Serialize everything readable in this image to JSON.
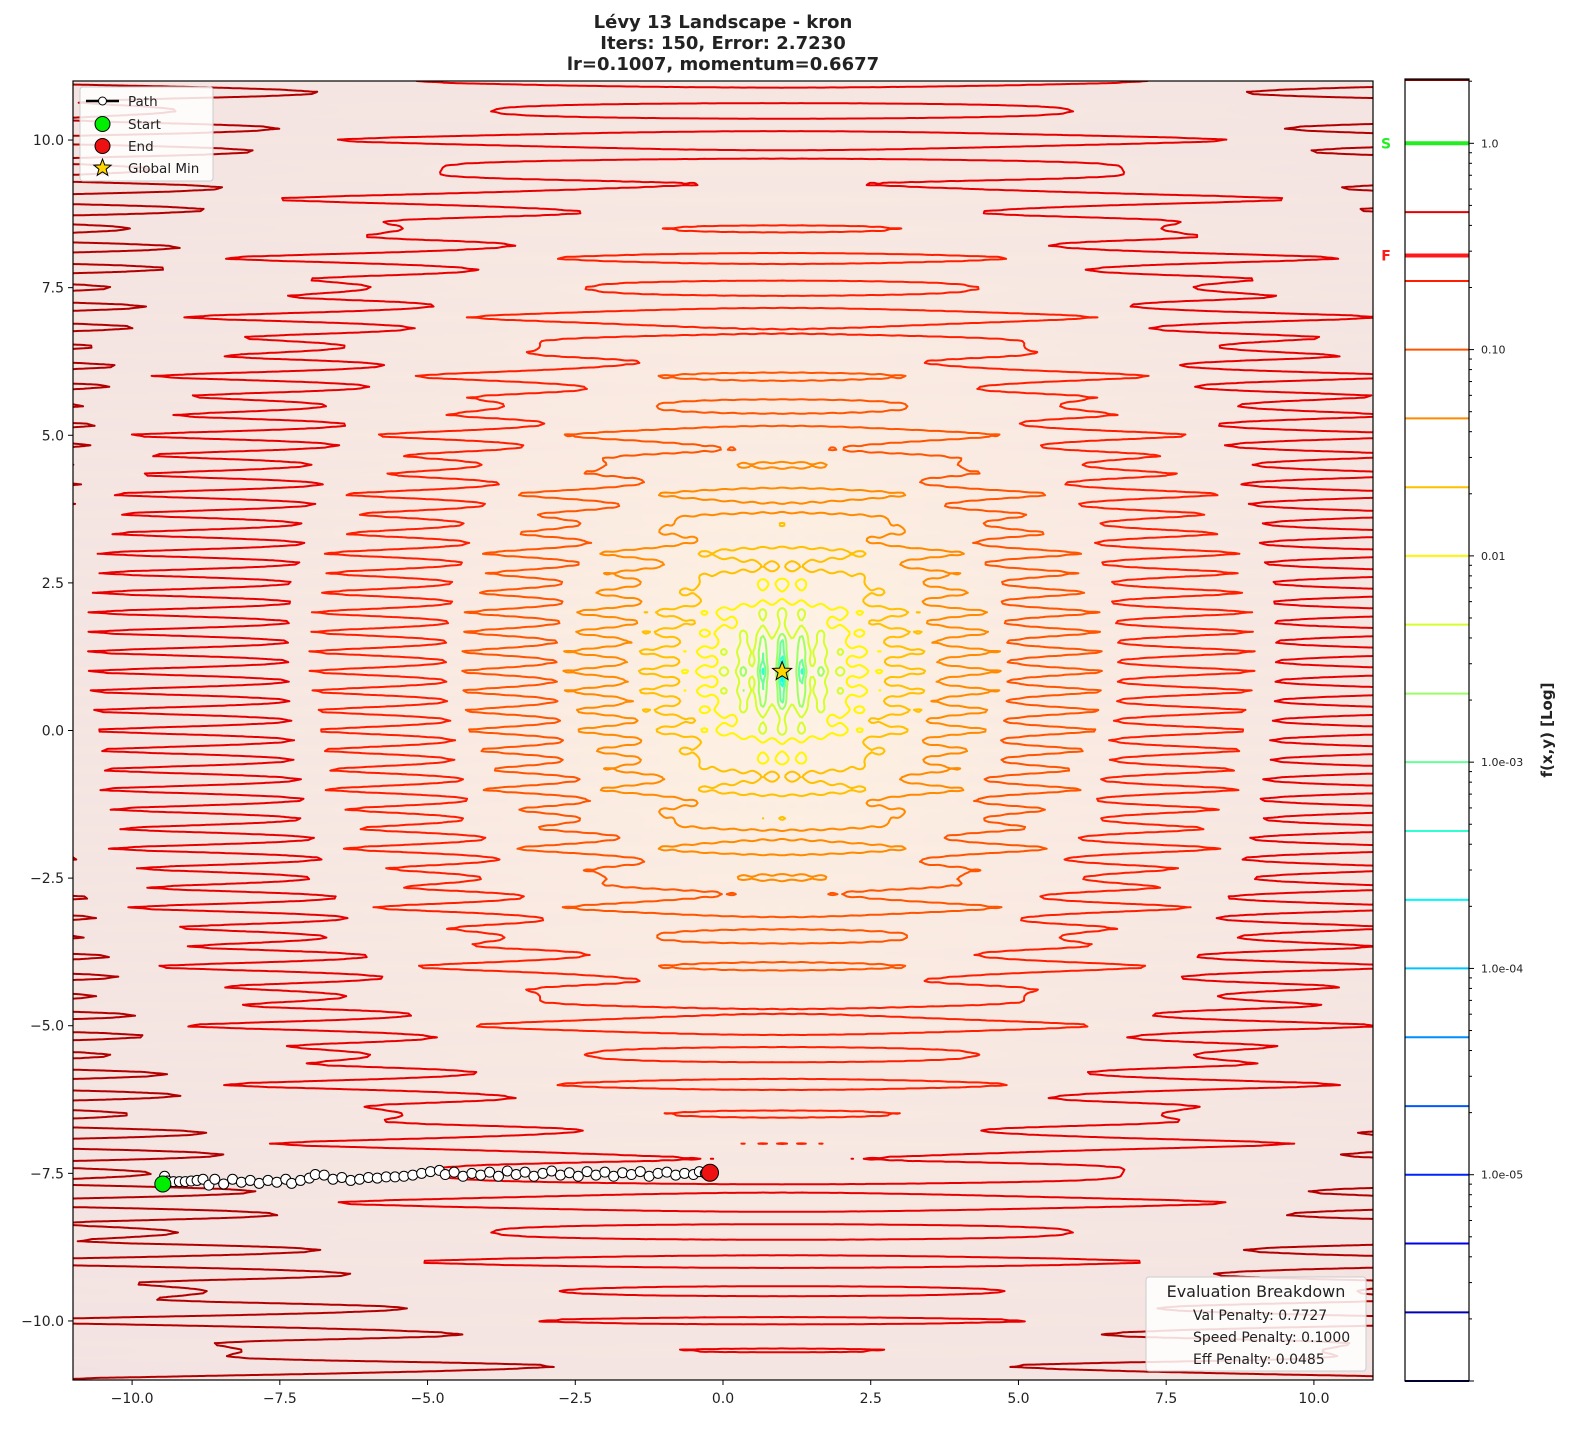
{
  "chart_data": {
    "type": "contour",
    "title": [
      "Lévy 13 Landscape - kron",
      "Iters: 150, Error: 2.7230",
      "lr=0.1007, momentum=0.6677"
    ],
    "xlabel": "",
    "ylabel": "",
    "xlim": [
      -11,
      11
    ],
    "ylim": [
      -11,
      11
    ],
    "grid": false,
    "xticks": [
      {
        "value": -10,
        "label": "−10.0"
      },
      {
        "value": -7.5,
        "label": "−7.5"
      },
      {
        "value": -5,
        "label": "−5.0"
      },
      {
        "value": -2.5,
        "label": "−2.5"
      },
      {
        "value": 0,
        "label": "0.0"
      },
      {
        "value": 2.5,
        "label": "2.5"
      },
      {
        "value": 5,
        "label": "5.0"
      },
      {
        "value": 7.5,
        "label": "7.5"
      },
      {
        "value": 10,
        "label": "10.0"
      }
    ],
    "yticks": [
      {
        "value": 10,
        "label": "10.0"
      },
      {
        "value": 7.5,
        "label": "7.5"
      },
      {
        "value": 5,
        "label": "5.0"
      },
      {
        "value": 2.5,
        "label": "2.5"
      },
      {
        "value": 0,
        "label": "0.0"
      },
      {
        "value": -2.5,
        "label": "−2.5"
      },
      {
        "value": -5,
        "label": "−5.0"
      },
      {
        "value": -7.5,
        "label": "−7.5"
      },
      {
        "value": -10,
        "label": "−10.0"
      }
    ],
    "colormap": "jet",
    "contour_levels": [
      1e-06,
      2.15e-06,
      4.64e-06,
      1e-05,
      2.15e-05,
      4.64e-05,
      0.0001,
      0.000215,
      0.000464,
      0.001,
      0.00215,
      0.00464,
      0.01,
      0.0215,
      0.0464,
      0.1,
      0.215,
      0.464,
      1.0
    ],
    "colorbar": {
      "label": "f(x,y) [Log]",
      "scale": "log",
      "range": [
        1e-06,
        2.05
      ],
      "ticks": [
        {
          "value": 1.0,
          "label": "1.0"
        },
        {
          "value": 0.1,
          "label": "0.10"
        },
        {
          "value": 0.01,
          "label": "0.01"
        },
        {
          "value": 0.001,
          "label": "1.0e-03"
        },
        {
          "value": 0.0001,
          "label": "1.0e-04"
        },
        {
          "value": 1e-05,
          "label": "1.0e-05"
        }
      ],
      "markers": [
        {
          "label": "S",
          "value": 1.0,
          "color": "#22ee22"
        },
        {
          "label": "F",
          "value": 0.286,
          "color": "#ff1a1a"
        }
      ]
    },
    "global_min": {
      "x": 1,
      "y": 1,
      "color": "#ffd700"
    },
    "start": {
      "x": -9.48,
      "y": -7.68,
      "color": "#00ee00"
    },
    "end": {
      "x": -0.22,
      "y": -7.49,
      "color": "#ee1111"
    },
    "path": [
      [
        -9.48,
        -7.68
      ],
      [
        -9.45,
        -7.55
      ],
      [
        -9.4,
        -7.63
      ],
      [
        -9.3,
        -7.64
      ],
      [
        -9.2,
        -7.64
      ],
      [
        -9.1,
        -7.64
      ],
      [
        -9.0,
        -7.63
      ],
      [
        -8.9,
        -7.62
      ],
      [
        -8.8,
        -7.6
      ],
      [
        -8.7,
        -7.7
      ],
      [
        -8.6,
        -7.6
      ],
      [
        -8.45,
        -7.68
      ],
      [
        -8.3,
        -7.6
      ],
      [
        -8.15,
        -7.65
      ],
      [
        -8.0,
        -7.62
      ],
      [
        -7.85,
        -7.67
      ],
      [
        -7.7,
        -7.62
      ],
      [
        -7.55,
        -7.65
      ],
      [
        -7.4,
        -7.6
      ],
      [
        -7.3,
        -7.67
      ],
      [
        -7.15,
        -7.62
      ],
      [
        -7.0,
        -7.58
      ],
      [
        -6.9,
        -7.52
      ],
      [
        -6.75,
        -7.53
      ],
      [
        -6.6,
        -7.6
      ],
      [
        -6.45,
        -7.57
      ],
      [
        -6.3,
        -7.62
      ],
      [
        -6.15,
        -7.6
      ],
      [
        -6.0,
        -7.57
      ],
      [
        -5.85,
        -7.58
      ],
      [
        -5.7,
        -7.56
      ],
      [
        -5.55,
        -7.56
      ],
      [
        -5.4,
        -7.55
      ],
      [
        -5.25,
        -7.53
      ],
      [
        -5.1,
        -7.5
      ],
      [
        -4.95,
        -7.47
      ],
      [
        -4.8,
        -7.45
      ],
      [
        -4.7,
        -7.52
      ],
      [
        -4.55,
        -7.48
      ],
      [
        -4.4,
        -7.55
      ],
      [
        -4.25,
        -7.5
      ],
      [
        -4.1,
        -7.53
      ],
      [
        -3.95,
        -7.48
      ],
      [
        -3.8,
        -7.55
      ],
      [
        -3.65,
        -7.46
      ],
      [
        -3.5,
        -7.52
      ],
      [
        -3.35,
        -7.48
      ],
      [
        -3.2,
        -7.55
      ],
      [
        -3.05,
        -7.5
      ],
      [
        -2.9,
        -7.46
      ],
      [
        -2.75,
        -7.53
      ],
      [
        -2.6,
        -7.49
      ],
      [
        -2.45,
        -7.55
      ],
      [
        -2.3,
        -7.47
      ],
      [
        -2.15,
        -7.53
      ],
      [
        -2.0,
        -7.48
      ],
      [
        -1.85,
        -7.55
      ],
      [
        -1.7,
        -7.49
      ],
      [
        -1.55,
        -7.52
      ],
      [
        -1.4,
        -7.47
      ],
      [
        -1.25,
        -7.55
      ],
      [
        -1.1,
        -7.5
      ],
      [
        -0.95,
        -7.48
      ],
      [
        -0.8,
        -7.53
      ],
      [
        -0.65,
        -7.5
      ],
      [
        -0.5,
        -7.52
      ],
      [
        -0.4,
        -7.47
      ],
      [
        -0.3,
        -7.5
      ],
      [
        -0.22,
        -7.49
      ]
    ],
    "legend": {
      "placement": "upper-left",
      "items": [
        {
          "label": "Path",
          "marker": "line-circle"
        },
        {
          "label": "Start",
          "marker": "circle",
          "color": "#00ee00"
        },
        {
          "label": "End",
          "marker": "circle",
          "color": "#ee1111"
        },
        {
          "label": "Global Min",
          "marker": "star",
          "color": "#ffd700"
        }
      ]
    }
  },
  "evaluation": {
    "title": "Evaluation Breakdown",
    "lines": [
      "Val Penalty: 0.7727",
      "Speed Penalty: 0.1000",
      "Eff Penalty: 0.0485"
    ]
  }
}
